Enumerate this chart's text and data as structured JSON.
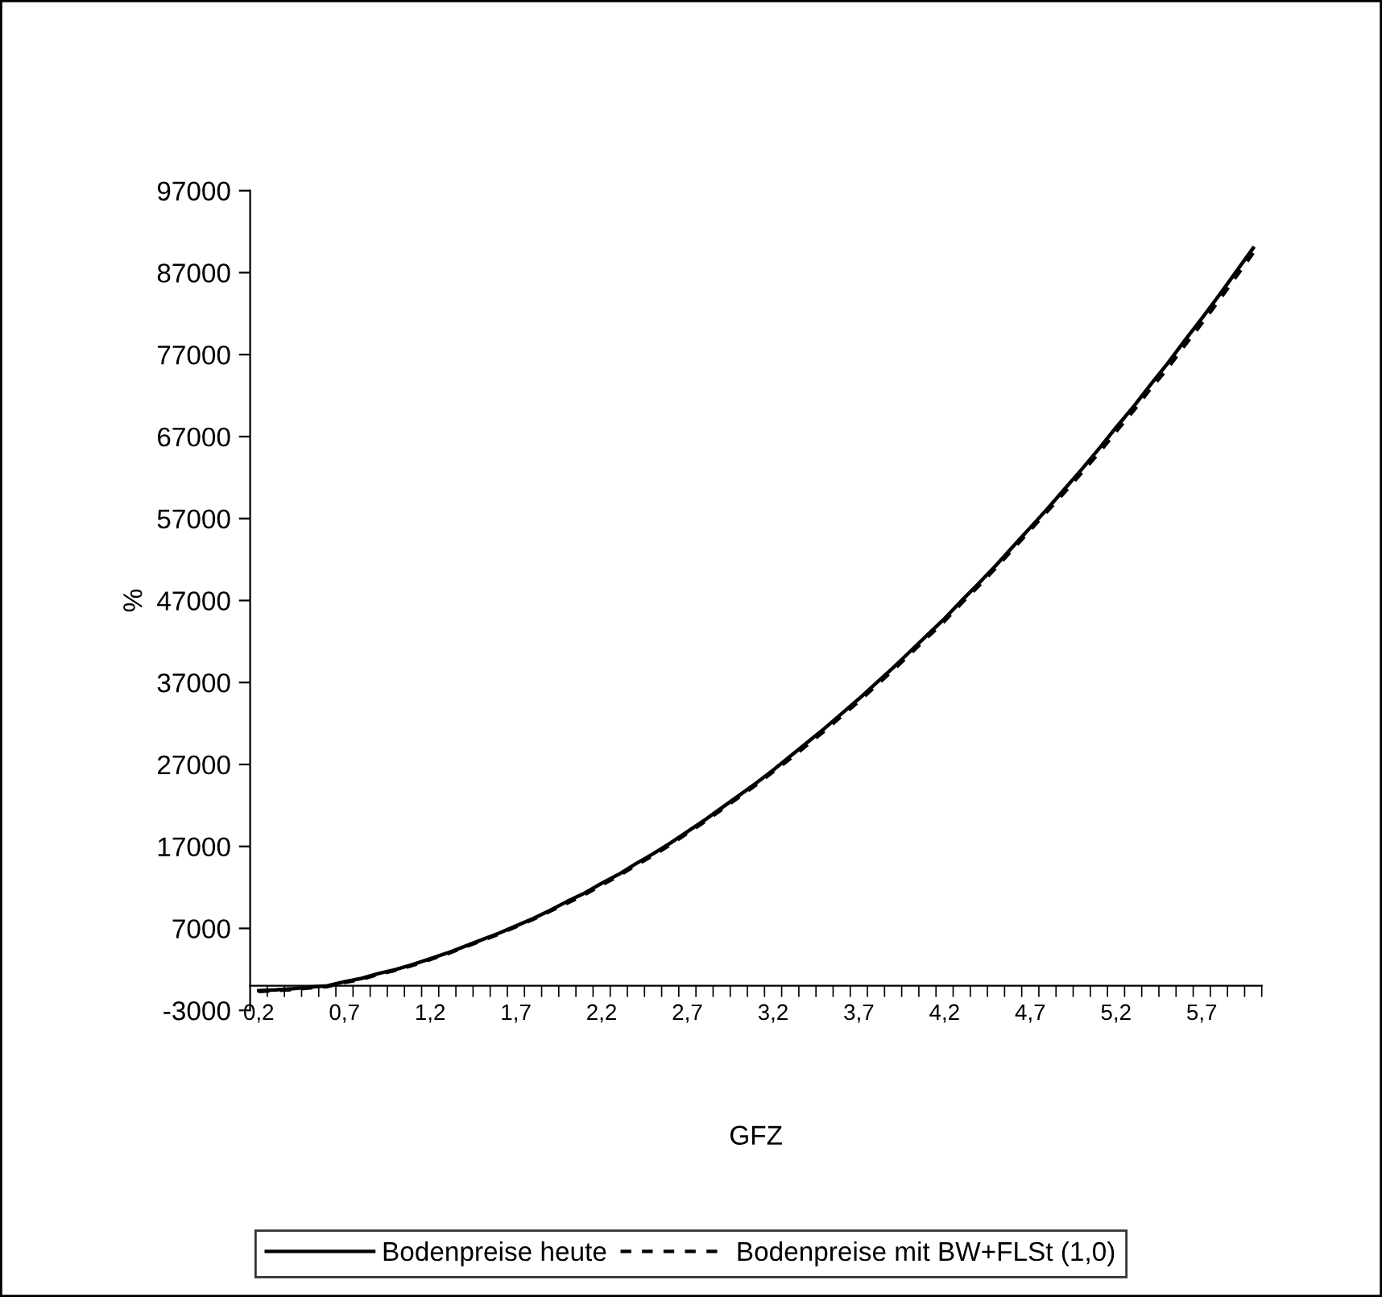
{
  "chart_data": {
    "type": "line",
    "xlabel": "GFZ",
    "ylabel": "%",
    "categories": [
      "0,2",
      null,
      null,
      null,
      null,
      "0,7",
      null,
      null,
      null,
      null,
      "1,2",
      null,
      null,
      null,
      null,
      "1,7",
      null,
      null,
      null,
      null,
      "2,2",
      null,
      null,
      null,
      null,
      "2,7",
      null,
      null,
      null,
      null,
      "3,2",
      null,
      null,
      null,
      null,
      "3,7",
      null,
      null,
      null,
      null,
      "4,2",
      null,
      null,
      null,
      null,
      "4,7",
      null,
      null,
      null,
      null,
      "5,2",
      null,
      null,
      null,
      null,
      "5,7",
      null,
      null,
      null
    ],
    "series": [
      {
        "name": "Bodenpreise heute",
        "color": "#000000",
        "line_style": "solid",
        "values": [
          -600,
          -500,
          -350,
          -150,
          0,
          500,
          900,
          1500,
          2000,
          2600,
          3300,
          4000,
          4800,
          5600,
          6400,
          7300,
          8200,
          9200,
          10300,
          11300,
          12500,
          13600,
          14900,
          16100,
          17400,
          18800,
          20200,
          21700,
          23200,
          24700,
          26300,
          28000,
          29700,
          31400,
          33200,
          35000,
          36900,
          38800,
          40800,
          42800,
          44800,
          47000,
          49100,
          51300,
          53600,
          55900,
          58200,
          60600,
          63000,
          65500,
          68100,
          70600,
          73300,
          75900,
          78700,
          81400,
          84200,
          87100,
          90000
        ]
      },
      {
        "name": "Bodenpreise mit BW+FLSt (1,0)",
        "color": "#000000",
        "line_style": "dashed",
        "values": [
          -700,
          -600,
          -450,
          -250,
          -100,
          400,
          800,
          1400,
          1900,
          2500,
          3200,
          3900,
          4700,
          5500,
          6300,
          7200,
          8100,
          9100,
          10100,
          11100,
          12300,
          13400,
          14700,
          15900,
          17200,
          18600,
          20000,
          21500,
          23000,
          24500,
          26100,
          27700,
          29400,
          31100,
          32900,
          34700,
          36600,
          38500,
          40500,
          42500,
          44500,
          46700,
          48800,
          51000,
          53300,
          55600,
          57900,
          60200,
          62600,
          65000,
          67600,
          70100,
          72800,
          75300,
          78100,
          80800,
          83600,
          86500,
          89400
        ]
      }
    ],
    "ylim": [
      -3000,
      97000
    ],
    "yticks": [
      -3000,
      7000,
      17000,
      27000,
      37000,
      47000,
      57000,
      67000,
      77000,
      87000,
      97000
    ],
    "grid": false,
    "legend": "bottom",
    "marker": "none"
  }
}
